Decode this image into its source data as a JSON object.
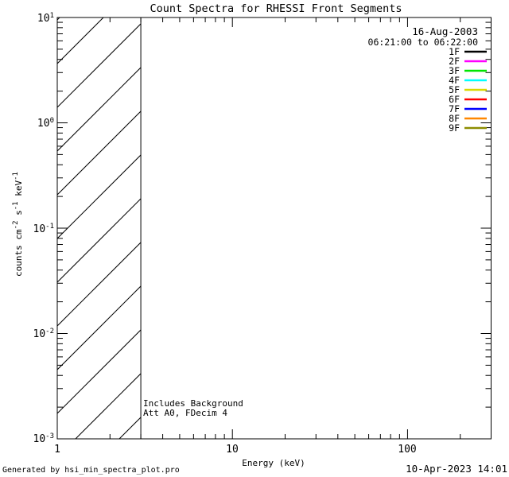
{
  "title": "Count Spectra for RHESSI Front Segments",
  "header": {
    "date": "16-Aug-2003",
    "time_range": "06:21:00 to 06:22:00"
  },
  "axes": {
    "x": {
      "label": "Energy (keV)",
      "tick_labels": [
        "1",
        "10",
        "100"
      ]
    },
    "y": {
      "label_parts": [
        {
          "t": "counts cm"
        },
        {
          "s": "-2"
        },
        {
          "t": " s"
        },
        {
          "s": "-1"
        },
        {
          "t": " keV"
        },
        {
          "s": "-1"
        }
      ],
      "ticks": [
        {
          "base": "10",
          "exp": "1"
        },
        {
          "base": "10",
          "exp": "0"
        },
        {
          "base": "10",
          "exp": "-1"
        },
        {
          "base": "10",
          "exp": "-2"
        },
        {
          "base": "10",
          "exp": "-3"
        }
      ]
    }
  },
  "annotations": [
    "Includes Background",
    "Att A0, FDecim 4"
  ],
  "footer": {
    "left": "Generated by hsi_min_spectra_plot.pro",
    "right": "10-Apr-2023 14:01"
  },
  "chart_data": {
    "type": "line",
    "title": "Count Spectra for RHESSI Front Segments",
    "xlabel": "Energy (keV)",
    "ylabel": "counts cm^-2 s^-1 keV^-1",
    "xscale": "log",
    "yscale": "log",
    "xlim": [
      1,
      300
    ],
    "ylim": [
      0.001,
      10
    ],
    "x_major_ticks": [
      1,
      10,
      100
    ],
    "y_major_ticks": [
      10,
      1,
      0.1,
      0.01,
      0.001
    ],
    "grid": false,
    "legend_position": "top-right",
    "series": [
      {
        "name": "1F",
        "color": "#000000",
        "values": []
      },
      {
        "name": "2F",
        "color": "#ff00ff",
        "values": []
      },
      {
        "name": "3F",
        "color": "#00e500",
        "values": []
      },
      {
        "name": "4F",
        "color": "#00ffff",
        "values": []
      },
      {
        "name": "5F",
        "color": "#d9d900",
        "values": []
      },
      {
        "name": "6F",
        "color": "#ff0000",
        "values": []
      },
      {
        "name": "7F",
        "color": "#0000ff",
        "values": []
      },
      {
        "name": "8F",
        "color": "#ff8700",
        "values": []
      },
      {
        "name": "9F",
        "color": "#8c8c00",
        "values": []
      }
    ],
    "note": "No spectral curves are drawn in the plot area; only a hatched low-energy exclusion band is shown.",
    "hatched_region": {
      "x_start_kev": 1,
      "x_end_kev": 3,
      "style": "diagonal-hatch-45deg"
    }
  }
}
